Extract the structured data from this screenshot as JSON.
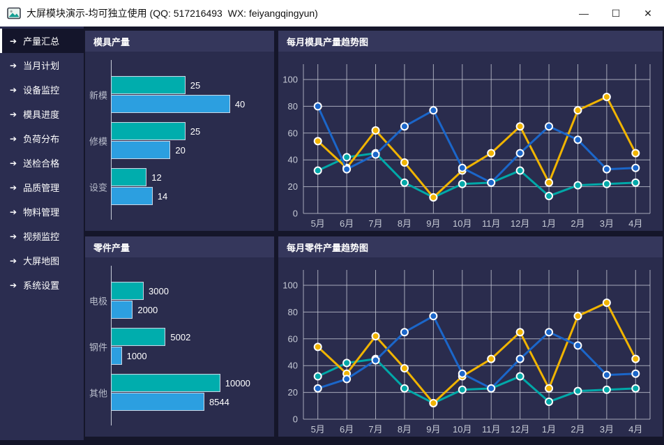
{
  "window": {
    "title": "大屏模块演示-均可独立使用 (QQ: 517216493  WX: feiyangqingyun)",
    "controls": {
      "minimize": "—",
      "maximize": "☐",
      "close": "✕"
    }
  },
  "sidebar": {
    "items": [
      {
        "label": "产量汇总",
        "active": true
      },
      {
        "label": "当月计划",
        "active": false
      },
      {
        "label": "设备监控",
        "active": false
      },
      {
        "label": "模具进度",
        "active": false
      },
      {
        "label": "负荷分布",
        "active": false
      },
      {
        "label": "送检合格",
        "active": false
      },
      {
        "label": "品质管理",
        "active": false
      },
      {
        "label": "物料管理",
        "active": false
      },
      {
        "label": "视频监控",
        "active": false
      },
      {
        "label": "大屏地图",
        "active": false
      },
      {
        "label": "系统设置",
        "active": false
      }
    ]
  },
  "colors": {
    "teal": "#00ADAD",
    "bar_blue": "#2C9FE0",
    "line_blue": "#1B66C9",
    "yellow": "#F0B400",
    "grid": "#C5C9D4",
    "panel_header": "#35375C",
    "panel_body": "#2A2C4D",
    "sidebar_bg": "#2B2D50",
    "page_bg": "#15162A"
  },
  "chart_data": [
    {
      "id": "mold-bar",
      "type": "bar",
      "orientation": "horizontal",
      "title": "模具产量",
      "categories": [
        "新模",
        "修模",
        "设变"
      ],
      "series": [
        {
          "name": "teal-series",
          "color": "#00ADAD",
          "values": [
            25,
            25,
            12
          ]
        },
        {
          "name": "blue-series",
          "color": "#2C9FE0",
          "values": [
            40,
            20,
            14
          ]
        }
      ],
      "xmax": 40,
      "max_pct": 73
    },
    {
      "id": "mold-trend",
      "type": "line",
      "title": "每月模具产量趋势图",
      "x": [
        "5月",
        "6月",
        "7月",
        "8月",
        "9月",
        "10月",
        "11月",
        "12月",
        "1月",
        "2月",
        "3月",
        "4月"
      ],
      "ylim": [
        0,
        100
      ],
      "ytick_step": 20,
      "grid": true,
      "legend": "none",
      "series": [
        {
          "name": "teal-series",
          "color": "#00A8A8",
          "values": [
            32,
            42,
            45,
            23,
            12,
            22,
            23,
            32,
            13,
            21,
            22,
            23
          ]
        },
        {
          "name": "yellow-series",
          "color": "#F0B400",
          "values": [
            54,
            34,
            62,
            38,
            12,
            32,
            45,
            65,
            23,
            77,
            87,
            45
          ]
        },
        {
          "name": "blue-series",
          "color": "#1B66C9",
          "values": [
            80,
            33,
            44,
            65,
            77,
            34,
            23,
            45,
            65,
            55,
            33,
            34
          ]
        }
      ]
    },
    {
      "id": "part-bar",
      "type": "bar",
      "orientation": "horizontal",
      "title": "零件产量",
      "categories": [
        "电极",
        "钢件",
        "其他"
      ],
      "series": [
        {
          "name": "teal-series",
          "color": "#00ADAD",
          "values": [
            3000,
            5002,
            10000
          ]
        },
        {
          "name": "blue-series",
          "color": "#2C9FE0",
          "values": [
            2000,
            1000,
            8544
          ]
        }
      ],
      "xmax": 10000,
      "max_pct": 67
    },
    {
      "id": "part-trend",
      "type": "line",
      "title": "每月零件产量趋势图",
      "x": [
        "5月",
        "6月",
        "7月",
        "8月",
        "9月",
        "10月",
        "11月",
        "12月",
        "1月",
        "2月",
        "3月",
        "4月"
      ],
      "ylim": [
        0,
        100
      ],
      "ytick_step": 20,
      "grid": true,
      "legend": "none",
      "series": [
        {
          "name": "teal-series",
          "color": "#00A8A8",
          "values": [
            32,
            42,
            45,
            23,
            12,
            22,
            23,
            32,
            13,
            21,
            22,
            23
          ]
        },
        {
          "name": "yellow-series",
          "color": "#F0B400",
          "values": [
            54,
            34,
            62,
            38,
            12,
            32,
            45,
            65,
            23,
            77,
            87,
            45
          ]
        },
        {
          "name": "blue-series",
          "color": "#1B66C9",
          "values": [
            23,
            30,
            44,
            65,
            77,
            34,
            23,
            45,
            65,
            55,
            33,
            34
          ]
        }
      ]
    }
  ]
}
